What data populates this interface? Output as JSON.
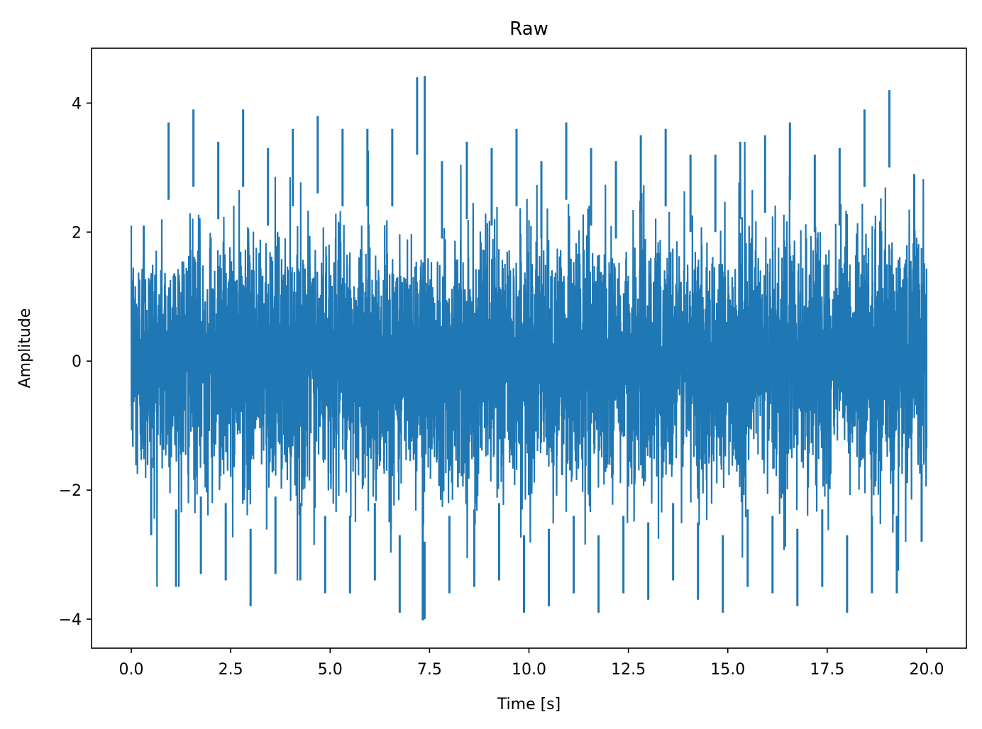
{
  "chart_data": {
    "type": "line",
    "title": "Raw",
    "xlabel": "Time [s]",
    "ylabel": "Amplitude",
    "xlim": [
      -1.0,
      21.0
    ],
    "ylim": [
      -4.45,
      4.85
    ],
    "xticks": [
      0.0,
      2.5,
      5.0,
      7.5,
      10.0,
      12.5,
      15.0,
      17.5,
      20.0
    ],
    "xtick_labels": [
      "0.0",
      "2.5",
      "5.0",
      "7.5",
      "10.0",
      "12.5",
      "15.0",
      "17.5",
      "20.0"
    ],
    "yticks": [
      -4,
      -2,
      0,
      2,
      4
    ],
    "ytick_labels": [
      "−4",
      "−2",
      "0",
      "2",
      "4"
    ],
    "grid": false,
    "legend": "none",
    "series": [
      {
        "color": "#1f77b4",
        "x_range": [
          0.0,
          20.0
        ],
        "envelope_upper": [
          2.1,
          3.7,
          3.9,
          3.4,
          3.9,
          3.3,
          3.6,
          3.8,
          3.6,
          3.6,
          3.6,
          4.4,
          3.1,
          3.4,
          3.3,
          3.6,
          3.1,
          3.7,
          3.3,
          3.1,
          3.5,
          3.6,
          3.2,
          3.2,
          3.4,
          3.5,
          3.7,
          3.2,
          3.3,
          3.9,
          4.2,
          2.9
        ],
        "envelope_lower": [
          -2.7,
          -3.5,
          -3.3,
          -3.4,
          -3.8,
          -3.3,
          -3.4,
          -3.6,
          -3.6,
          -3.4,
          -3.9,
          -4.0,
          -3.6,
          -3.5,
          -3.4,
          -3.9,
          -3.8,
          -3.6,
          -3.9,
          -3.6,
          -3.7,
          -3.4,
          -3.7,
          -3.9,
          -3.5,
          -3.6,
          -3.8,
          -3.5,
          -3.9,
          -3.6,
          -3.6,
          -2.8
        ],
        "peak_max": {
          "x": 7.38,
          "y": 4.42
        },
        "peak_min": {
          "x": 7.33,
          "y": -4.02
        }
      }
    ]
  }
}
